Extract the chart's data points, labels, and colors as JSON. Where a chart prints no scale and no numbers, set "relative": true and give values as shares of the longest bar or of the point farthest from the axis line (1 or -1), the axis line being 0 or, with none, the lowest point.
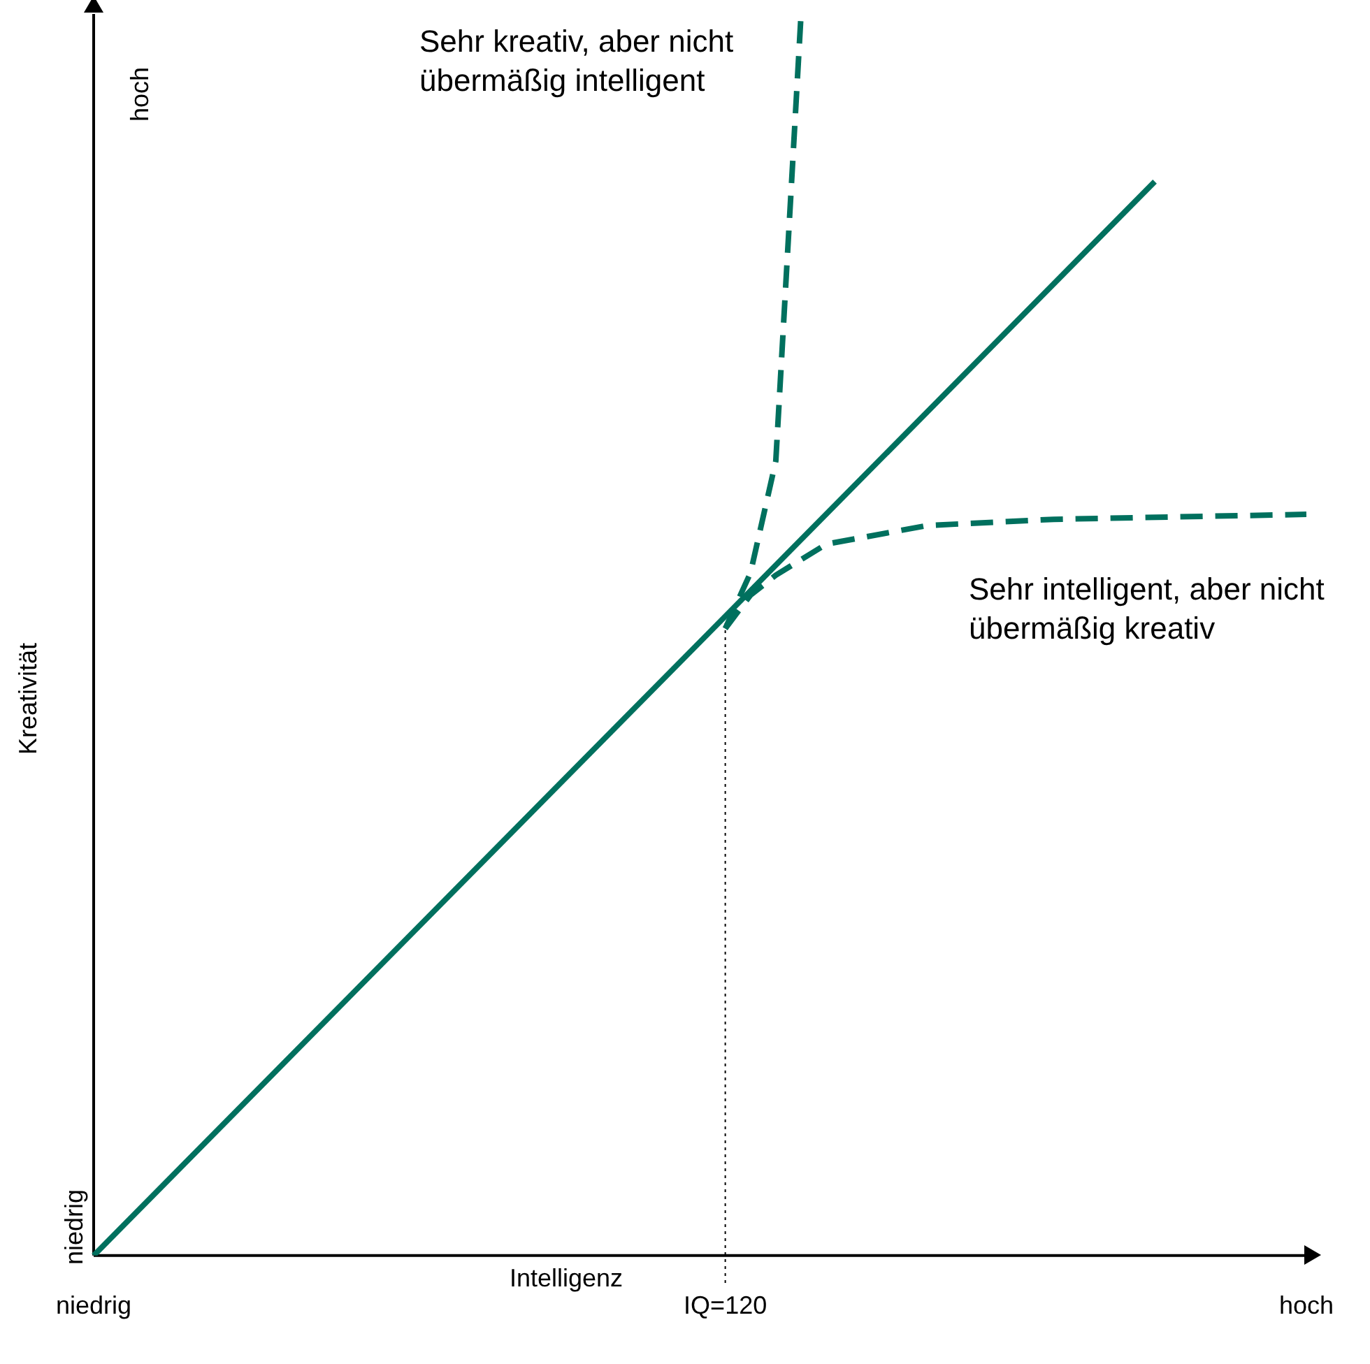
{
  "chart_data": {
    "type": "line",
    "relative": true,
    "xlabel": "Intelligenz",
    "ylabel": "Kreativität",
    "legend": false,
    "marker": "none",
    "categories": [
      "niedrig",
      null,
      null,
      null,
      null,
      null,
      null,
      null,
      null,
      null,
      null,
      null,
      null,
      null,
      null,
      null,
      null,
      null,
      null,
      null,
      null,
      null,
      null,
      null,
      null,
      "IQ=120",
      null,
      null,
      null,
      null,
      null,
      null,
      null,
      null,
      null,
      null,
      null,
      null,
      null,
      null,
      null,
      null,
      null,
      null,
      null,
      null,
      null,
      null,
      "hoch"
    ],
    "series": [
      {
        "color": "#00705e",
        "line_style": "solid",
        "values": [
          0,
          null,
          null,
          null,
          null,
          null,
          null,
          null,
          null,
          null,
          null,
          null,
          null,
          null,
          null,
          null,
          null,
          null,
          null,
          null,
          null,
          null,
          null,
          null,
          null,
          null,
          null,
          null,
          null,
          null,
          null,
          null,
          null,
          null,
          null,
          null,
          null,
          null,
          null,
          null,
          null,
          null,
          0.865,
          null,
          null,
          null,
          null,
          null,
          null
        ]
      },
      {
        "color": "#00705e",
        "line_style": "dashed",
        "values": [
          null,
          null,
          null,
          null,
          null,
          null,
          null,
          null,
          null,
          null,
          null,
          null,
          null,
          null,
          null,
          null,
          null,
          null,
          null,
          null,
          null,
          null,
          null,
          null,
          null,
          0.505,
          0.55,
          0.64,
          1.0,
          null,
          null,
          null,
          null,
          null,
          null,
          null,
          null,
          null,
          null,
          null,
          null,
          null,
          null,
          null,
          null,
          null,
          null,
          null,
          null
        ]
      },
      {
        "color": "#00705e",
        "line_style": "dashed",
        "values": [
          null,
          null,
          null,
          null,
          null,
          null,
          null,
          null,
          null,
          null,
          null,
          null,
          null,
          null,
          null,
          null,
          null,
          null,
          null,
          null,
          null,
          null,
          null,
          null,
          null,
          0.505,
          0.532,
          0.548,
          null,
          0.573,
          null,
          null,
          null,
          0.588,
          null,
          null,
          null,
          null,
          0.593,
          null,
          null,
          null,
          null,
          null,
          null,
          null,
          null,
          null,
          0.597
        ]
      }
    ],
    "ref_lines": [
      {
        "axis": "x",
        "value": "IQ=120",
        "color": "#000000",
        "line_style": "dotted"
      }
    ],
    "annotations": [
      "hoch",
      "Sehr kreativ, aber nicht übermäßig intelligent",
      "Sehr intelligent, aber nicht übermäßig kreativ",
      "niedrig"
    ]
  }
}
